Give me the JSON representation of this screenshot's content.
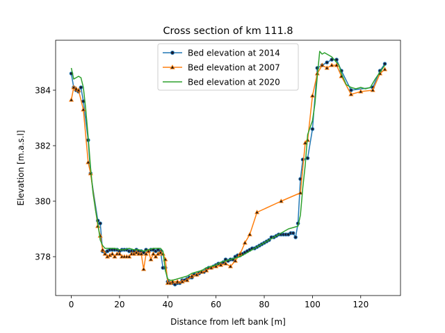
{
  "chart_data": {
    "type": "line",
    "title": "Cross section of km 111.8",
    "xlabel": "Distance from left bank [m]",
    "ylabel": "Elevation [m.a.s.l]",
    "xlim": [
      -6.5,
      136.5
    ],
    "ylim": [
      376.6,
      385.8
    ],
    "xticks": [
      0,
      20,
      40,
      60,
      80,
      100,
      120
    ],
    "yticks": [
      378,
      380,
      382,
      384
    ],
    "grid": false,
    "legend": "top-center",
    "series": [
      {
        "name": "Bed elevation at 2014",
        "color": "#1f77b4",
        "marker": "circle",
        "x": [
          0,
          1,
          2,
          3,
          4,
          5,
          7,
          8,
          11,
          12,
          13,
          14,
          15,
          16,
          17,
          18,
          19,
          20,
          21,
          22,
          23,
          24,
          25,
          26,
          27,
          28,
          29,
          30,
          31,
          32,
          33,
          34,
          35,
          36,
          37,
          38,
          39,
          40,
          41,
          42,
          43,
          44,
          45,
          46,
          47,
          48,
          49,
          50,
          51,
          52,
          53,
          54,
          55,
          56,
          57,
          58,
          59,
          60,
          61,
          62,
          63,
          64,
          65,
          66,
          67,
          68,
          69,
          70,
          71,
          72,
          73,
          74,
          75,
          76,
          77,
          78,
          79,
          80,
          81,
          82,
          83,
          84,
          85,
          86,
          87,
          88,
          89,
          90,
          91,
          92,
          93,
          94,
          95,
          96,
          98,
          100,
          102,
          104,
          106,
          108,
          110,
          112,
          116,
          125,
          128,
          130
        ],
        "y": [
          384.6,
          384.1,
          384.0,
          383.95,
          384.1,
          383.6,
          382.2,
          381.0,
          379.3,
          379.2,
          378.2,
          378.15,
          378.2,
          378.25,
          378.25,
          378.25,
          378.25,
          378.2,
          378.25,
          378.25,
          378.25,
          378.2,
          378.2,
          378.2,
          378.25,
          378.2,
          378.2,
          378.15,
          378.25,
          378.2,
          378.25,
          378.25,
          378.2,
          378.25,
          378.2,
          377.6,
          377.6,
          377.1,
          377.05,
          377.05,
          377.0,
          377.05,
          377.05,
          377.15,
          377.15,
          377.2,
          377.25,
          377.25,
          377.35,
          377.35,
          377.4,
          377.45,
          377.45,
          377.55,
          377.6,
          377.6,
          377.65,
          377.7,
          377.75,
          377.75,
          377.8,
          377.9,
          377.85,
          377.9,
          377.9,
          378.0,
          378.05,
          378.05,
          378.1,
          378.15,
          378.2,
          378.25,
          378.3,
          378.3,
          378.35,
          378.4,
          378.45,
          378.5,
          378.55,
          378.6,
          378.7,
          378.7,
          378.75,
          378.8,
          378.8,
          378.8,
          378.8,
          378.8,
          378.85,
          378.85,
          378.7,
          379.2,
          380.8,
          381.5,
          381.55,
          382.6,
          384.8,
          384.9,
          385.0,
          385.1,
          385.1,
          384.7,
          384.0,
          384.1,
          384.7,
          384.95
        ]
      },
      {
        "name": "Bed elevation at 2007",
        "color": "#ff7f0e",
        "marker": "triangle",
        "x": [
          0,
          1,
          2,
          3,
          5,
          7,
          8,
          11,
          12,
          13,
          14,
          15,
          16,
          17,
          18,
          19,
          20,
          21,
          22,
          23,
          24,
          25,
          26,
          27,
          28,
          29,
          30,
          31,
          32,
          33,
          34,
          35,
          36,
          37,
          38,
          39,
          40,
          41,
          42,
          44,
          46,
          48,
          50,
          52,
          54,
          56,
          58,
          60,
          62,
          64,
          66,
          68,
          70,
          72,
          74,
          77,
          87,
          95,
          97,
          98,
          100,
          102,
          104,
          106,
          108,
          110,
          112,
          116,
          120,
          125,
          128,
          130
        ],
        "y": [
          383.65,
          384.1,
          384.05,
          384.0,
          383.3,
          381.4,
          381.0,
          379.1,
          378.75,
          378.25,
          378.1,
          378.0,
          378.05,
          378.1,
          378.0,
          378.1,
          378.1,
          378.0,
          378.0,
          378.0,
          378.0,
          378.1,
          378.1,
          378.15,
          378.1,
          378.1,
          377.55,
          378.1,
          378.2,
          377.9,
          378.1,
          378.0,
          378.1,
          378.15,
          378.1,
          377.9,
          377.05,
          377.05,
          377.1,
          377.1,
          377.1,
          377.15,
          377.3,
          377.35,
          377.45,
          377.5,
          377.6,
          377.65,
          377.7,
          377.75,
          377.65,
          377.85,
          378.1,
          378.5,
          378.8,
          379.6,
          380.0,
          380.3,
          382.1,
          382.2,
          383.8,
          384.6,
          384.9,
          384.8,
          384.9,
          384.9,
          384.5,
          383.85,
          383.95,
          384.0,
          384.6,
          384.75
        ]
      },
      {
        "name": "Bed elevation at 2020",
        "color": "#2ca02c",
        "marker": "none",
        "x": [
          0,
          1,
          2,
          3,
          4,
          5,
          6,
          7,
          8,
          9,
          10,
          11,
          12,
          13,
          14,
          15,
          16,
          18,
          20,
          22,
          24,
          26,
          28,
          30,
          32,
          34,
          36,
          37,
          38,
          39,
          40,
          41,
          42,
          44,
          46,
          48,
          50,
          52,
          54,
          56,
          58,
          60,
          62,
          64,
          66,
          68,
          70,
          72,
          74,
          76,
          78,
          80,
          82,
          84,
          86,
          88,
          90,
          92,
          94,
          95,
          96,
          97,
          98,
          100,
          101,
          102,
          103,
          104,
          105,
          106,
          107,
          108,
          109,
          110,
          111,
          112,
          113,
          114,
          116,
          118,
          120,
          122,
          124,
          126,
          128,
          130
        ],
        "y": [
          384.8,
          384.4,
          384.45,
          384.5,
          384.45,
          384.1,
          383.3,
          382.3,
          381.2,
          380.3,
          379.7,
          379.2,
          378.6,
          378.4,
          378.3,
          378.3,
          378.3,
          378.3,
          378.25,
          378.25,
          378.3,
          378.25,
          378.25,
          378.2,
          378.25,
          378.3,
          378.3,
          378.3,
          378.2,
          377.5,
          377.2,
          377.15,
          377.15,
          377.2,
          377.25,
          377.3,
          377.4,
          377.45,
          377.5,
          377.6,
          377.65,
          377.7,
          377.8,
          377.85,
          377.9,
          377.95,
          378.0,
          378.1,
          378.2,
          378.3,
          378.4,
          378.5,
          378.6,
          378.7,
          378.8,
          378.9,
          379.0,
          379.05,
          379.1,
          379.5,
          380.5,
          381.3,
          382.4,
          382.9,
          383.5,
          384.5,
          385.4,
          385.3,
          385.35,
          385.3,
          385.25,
          385.2,
          385.1,
          385.0,
          384.9,
          384.6,
          384.4,
          384.2,
          384.1,
          384.05,
          384.1,
          384.05,
          384.1,
          384.4,
          384.65,
          384.9
        ]
      }
    ]
  }
}
